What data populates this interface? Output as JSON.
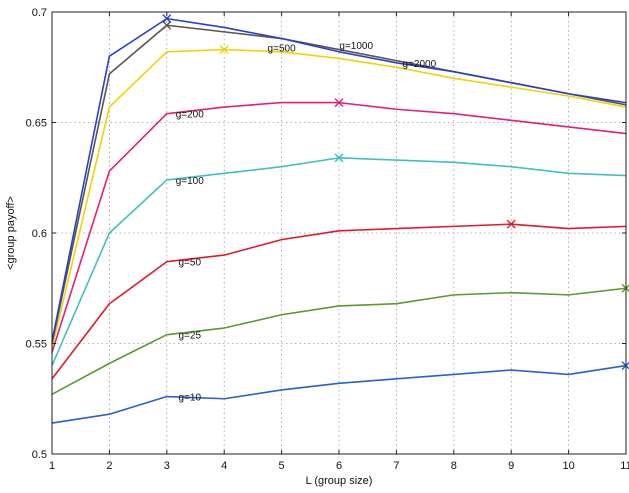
{
  "chart_data": {
    "type": "line",
    "title": "",
    "xlabel": "L (group size)",
    "ylabel": "<group payoff>",
    "xlim": [
      1,
      11
    ],
    "ylim": [
      0.5,
      0.7
    ],
    "xticks": [
      1,
      2,
      3,
      4,
      5,
      6,
      7,
      8,
      9,
      10,
      11
    ],
    "yticks": [
      0.5,
      0.55,
      0.6,
      0.65,
      0.7
    ],
    "ytick_labels": [
      "0.5",
      "0.55",
      "0.6",
      "0.65",
      "0.7"
    ],
    "grid": true,
    "x": [
      1,
      2,
      3,
      4,
      5,
      6,
      7,
      8,
      9,
      10,
      11
    ],
    "series": [
      {
        "name": "g=10",
        "color": "#2a5fd0",
        "values": [
          0.514,
          0.518,
          0.526,
          0.525,
          0.529,
          0.532,
          0.534,
          0.536,
          0.538,
          0.536,
          0.54
        ],
        "marker_index": 10,
        "label_x": 3.4,
        "label_y": 0.526
      },
      {
        "name": "g=25",
        "color": "#5a9a2e",
        "values": [
          0.527,
          0.541,
          0.554,
          0.557,
          0.563,
          0.567,
          0.568,
          0.572,
          0.573,
          0.572,
          0.575
        ],
        "marker_index": 10,
        "label_x": 3.4,
        "label_y": 0.554
      },
      {
        "name": "g=50",
        "color": "#e01a2a",
        "values": [
          0.534,
          0.568,
          0.587,
          0.59,
          0.597,
          0.601,
          0.602,
          0.603,
          0.604,
          0.602,
          0.603
        ],
        "marker_index": 8,
        "label_x": 3.4,
        "label_y": 0.587
      },
      {
        "name": "g=100",
        "color": "#40c0c0",
        "values": [
          0.54,
          0.6,
          0.624,
          0.627,
          0.63,
          0.634,
          0.633,
          0.632,
          0.63,
          0.627,
          0.626
        ],
        "marker_index": 5,
        "label_x": 3.4,
        "label_y": 0.624
      },
      {
        "name": "g=200",
        "color": "#e0207a",
        "values": [
          0.546,
          0.628,
          0.654,
          0.657,
          0.659,
          0.659,
          0.656,
          0.654,
          0.651,
          0.648,
          0.645
        ],
        "marker_index": 5,
        "label_x": 3.4,
        "label_y": 0.654
      },
      {
        "name": "g=500",
        "color": "#f2d200",
        "values": [
          0.548,
          0.657,
          0.682,
          0.683,
          0.682,
          0.679,
          0.675,
          0.67,
          0.666,
          0.662,
          0.657
        ],
        "marker_index": 3,
        "label_x": 5.0,
        "label_y": 0.684
      },
      {
        "name": "g=1000",
        "color": "#555555",
        "values": [
          0.55,
          0.672,
          0.694,
          0.691,
          0.688,
          0.683,
          0.678,
          0.673,
          0.668,
          0.663,
          0.658
        ],
        "marker_index": 2,
        "label_x": 6.3,
        "label_y": 0.685
      },
      {
        "name": "g=2000",
        "color": "#2a40c8",
        "values": [
          0.551,
          0.68,
          0.697,
          0.693,
          0.688,
          0.682,
          0.677,
          0.673,
          0.668,
          0.663,
          0.659
        ],
        "marker_index": 2,
        "label_x": 7.4,
        "label_y": 0.677
      }
    ]
  }
}
